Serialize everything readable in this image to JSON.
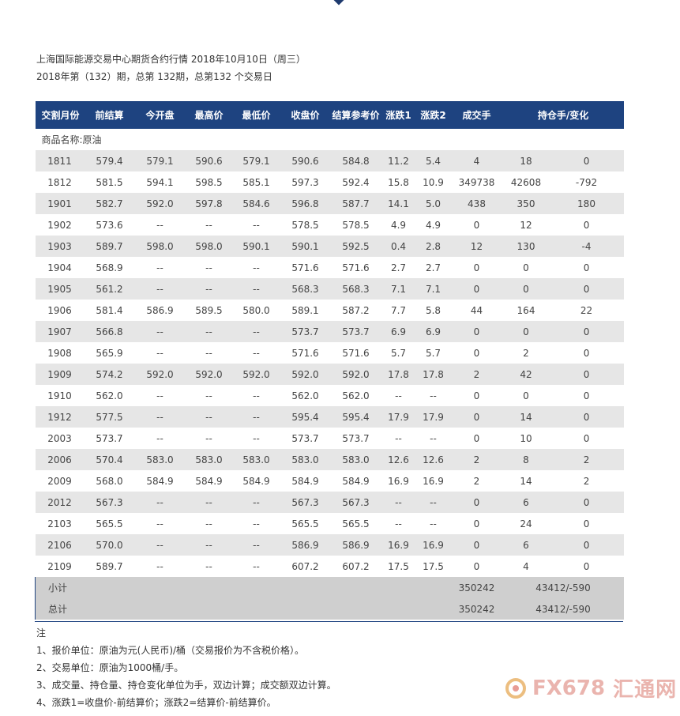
{
  "heading": {
    "line1": "上海国际能源交易中心期货合约行情 2018年10月10日（周三）",
    "line2": "2018年第（132）期，总第 132期，总第132 个交易日"
  },
  "table": {
    "headers": [
      "交割月份",
      "前结算",
      "今开盘",
      "最高价",
      "最低价",
      "收盘价",
      "结算参考价",
      "涨跌1",
      "涨跌2",
      "成交手",
      "持仓手/变化"
    ],
    "category": "商品名称:原油",
    "rows": [
      [
        "1811",
        "579.4",
        "579.1",
        "590.6",
        "579.1",
        "590.6",
        "584.8",
        "11.2",
        "5.4",
        "4",
        "18",
        "0"
      ],
      [
        "1812",
        "581.5",
        "594.1",
        "598.5",
        "585.1",
        "597.3",
        "592.4",
        "15.8",
        "10.9",
        "349738",
        "42608",
        "-792"
      ],
      [
        "1901",
        "582.7",
        "592.0",
        "597.8",
        "584.6",
        "596.8",
        "587.7",
        "14.1",
        "5.0",
        "438",
        "350",
        "180"
      ],
      [
        "1902",
        "573.6",
        "--",
        "--",
        "--",
        "578.5",
        "578.5",
        "4.9",
        "4.9",
        "0",
        "12",
        "0"
      ],
      [
        "1903",
        "589.7",
        "598.0",
        "598.0",
        "590.1",
        "590.1",
        "592.5",
        "0.4",
        "2.8",
        "12",
        "130",
        "-4"
      ],
      [
        "1904",
        "568.9",
        "--",
        "--",
        "--",
        "571.6",
        "571.6",
        "2.7",
        "2.7",
        "0",
        "0",
        "0"
      ],
      [
        "1905",
        "561.2",
        "--",
        "--",
        "--",
        "568.3",
        "568.3",
        "7.1",
        "7.1",
        "0",
        "0",
        "0"
      ],
      [
        "1906",
        "581.4",
        "586.9",
        "589.5",
        "580.0",
        "589.1",
        "587.2",
        "7.7",
        "5.8",
        "44",
        "164",
        "22"
      ],
      [
        "1907",
        "566.8",
        "--",
        "--",
        "--",
        "573.7",
        "573.7",
        "6.9",
        "6.9",
        "0",
        "0",
        "0"
      ],
      [
        "1908",
        "565.9",
        "--",
        "--",
        "--",
        "571.6",
        "571.6",
        "5.7",
        "5.7",
        "0",
        "2",
        "0"
      ],
      [
        "1909",
        "574.2",
        "592.0",
        "592.0",
        "592.0",
        "592.0",
        "592.0",
        "17.8",
        "17.8",
        "2",
        "42",
        "0"
      ],
      [
        "1910",
        "562.0",
        "--",
        "--",
        "--",
        "562.0",
        "562.0",
        "--",
        "--",
        "0",
        "0",
        "0"
      ],
      [
        "1912",
        "577.5",
        "--",
        "--",
        "--",
        "595.4",
        "595.4",
        "17.9",
        "17.9",
        "0",
        "14",
        "0"
      ],
      [
        "2003",
        "573.7",
        "--",
        "--",
        "--",
        "573.7",
        "573.7",
        "--",
        "--",
        "0",
        "10",
        "0"
      ],
      [
        "2006",
        "570.4",
        "583.0",
        "583.0",
        "583.0",
        "583.0",
        "583.0",
        "12.6",
        "12.6",
        "2",
        "8",
        "2"
      ],
      [
        "2009",
        "568.0",
        "584.9",
        "584.9",
        "584.9",
        "584.9",
        "584.9",
        "16.9",
        "16.9",
        "2",
        "14",
        "2"
      ],
      [
        "2012",
        "567.3",
        "--",
        "--",
        "--",
        "567.3",
        "567.3",
        "--",
        "--",
        "0",
        "6",
        "0"
      ],
      [
        "2103",
        "565.5",
        "--",
        "--",
        "--",
        "565.5",
        "565.5",
        "--",
        "--",
        "0",
        "24",
        "0"
      ],
      [
        "2106",
        "570.0",
        "--",
        "--",
        "--",
        "586.9",
        "586.9",
        "16.9",
        "16.9",
        "0",
        "6",
        "0"
      ],
      [
        "2109",
        "589.7",
        "--",
        "--",
        "--",
        "607.2",
        "607.2",
        "17.5",
        "17.5",
        "0",
        "4",
        "0"
      ]
    ],
    "summary": [
      {
        "label": "小计",
        "volume": "350242",
        "position": "43412/-590"
      },
      {
        "label": "总计",
        "volume": "350242",
        "position": "43412/-590"
      }
    ]
  },
  "notes": [
    "注",
    "1、报价单位：原油为元(人民币)/桶（交易报价为不含税价格）。",
    "2、交易单位：原油为1000桶/手。",
    "3、成交量、持仓量、持仓变化单位为手，双边计算；成交额双边计算。",
    "4、涨跌1=收盘价-前结算价；涨跌2=结算价-前结算价。"
  ],
  "watermark": {
    "brand": "FX678",
    "brand_cn": "汇通网"
  }
}
